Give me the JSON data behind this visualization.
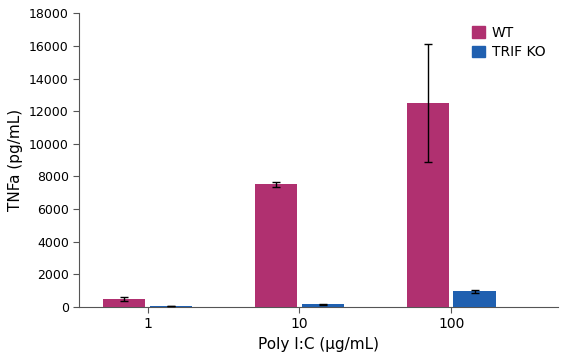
{
  "categories": [
    "1",
    "10",
    "100"
  ],
  "wt_values": [
    500,
    7500,
    12500
  ],
  "trif_values": [
    18,
    150,
    950
  ],
  "wt_errors": [
    120,
    160,
    3600
  ],
  "trif_errors": [
    4,
    25,
    90
  ],
  "wt_color": "#b03070",
  "trif_color": "#2060b0",
  "bar_width": 0.28,
  "group_positions": [
    1,
    2,
    3
  ],
  "ylabel": "TNFa (pg/mL)",
  "xlabel": "Poly I:C (μg/mL)",
  "ylim": [
    0,
    18000
  ],
  "yticks": [
    0,
    2000,
    4000,
    6000,
    8000,
    10000,
    12000,
    14000,
    16000,
    18000
  ],
  "legend_labels": [
    "WT",
    "TRIF KO"
  ],
  "background_color": "#ffffff",
  "error_capsize": 3,
  "error_color": "black",
  "figsize": [
    5.66,
    3.6
  ],
  "dpi": 100
}
